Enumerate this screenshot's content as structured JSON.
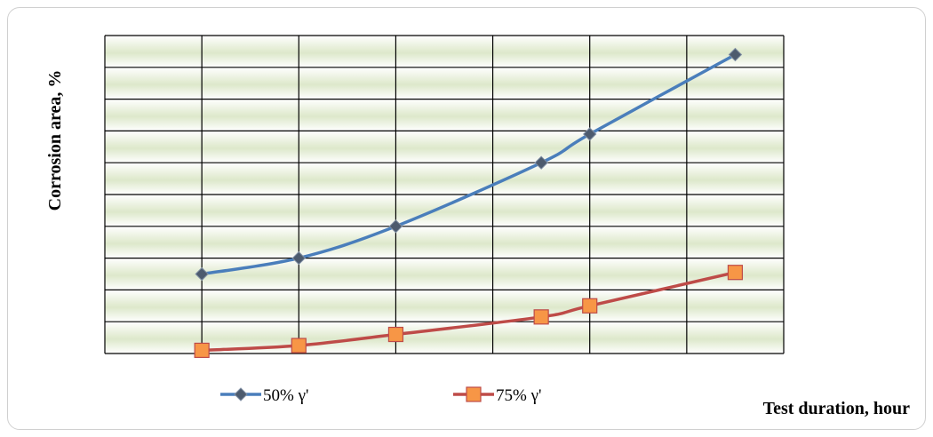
{
  "chart_data": {
    "type": "line",
    "title": "",
    "xlabel": "Test duration, hour",
    "ylabel": "Corrosion area,  %",
    "xlim": [
      -1,
      6
    ],
    "ylim": [
      0,
      10
    ],
    "grid": true,
    "legend_position": "bottom",
    "series": [
      {
        "name": "50% γ'",
        "color": "#4a7ebb",
        "marker": "diamond",
        "x": [
          0,
          1,
          2,
          3.5,
          4,
          5.5
        ],
        "y": [
          2.5,
          3.0,
          4.0,
          6.0,
          6.9,
          9.4
        ]
      },
      {
        "name": "75% γ'",
        "color": "#be4b48",
        "marker": "square",
        "marker_color": "#f79646",
        "x": [
          0,
          1,
          2,
          3.5,
          4,
          5.5
        ],
        "y": [
          0.1,
          0.25,
          0.6,
          1.15,
          1.5,
          2.55
        ]
      }
    ]
  }
}
